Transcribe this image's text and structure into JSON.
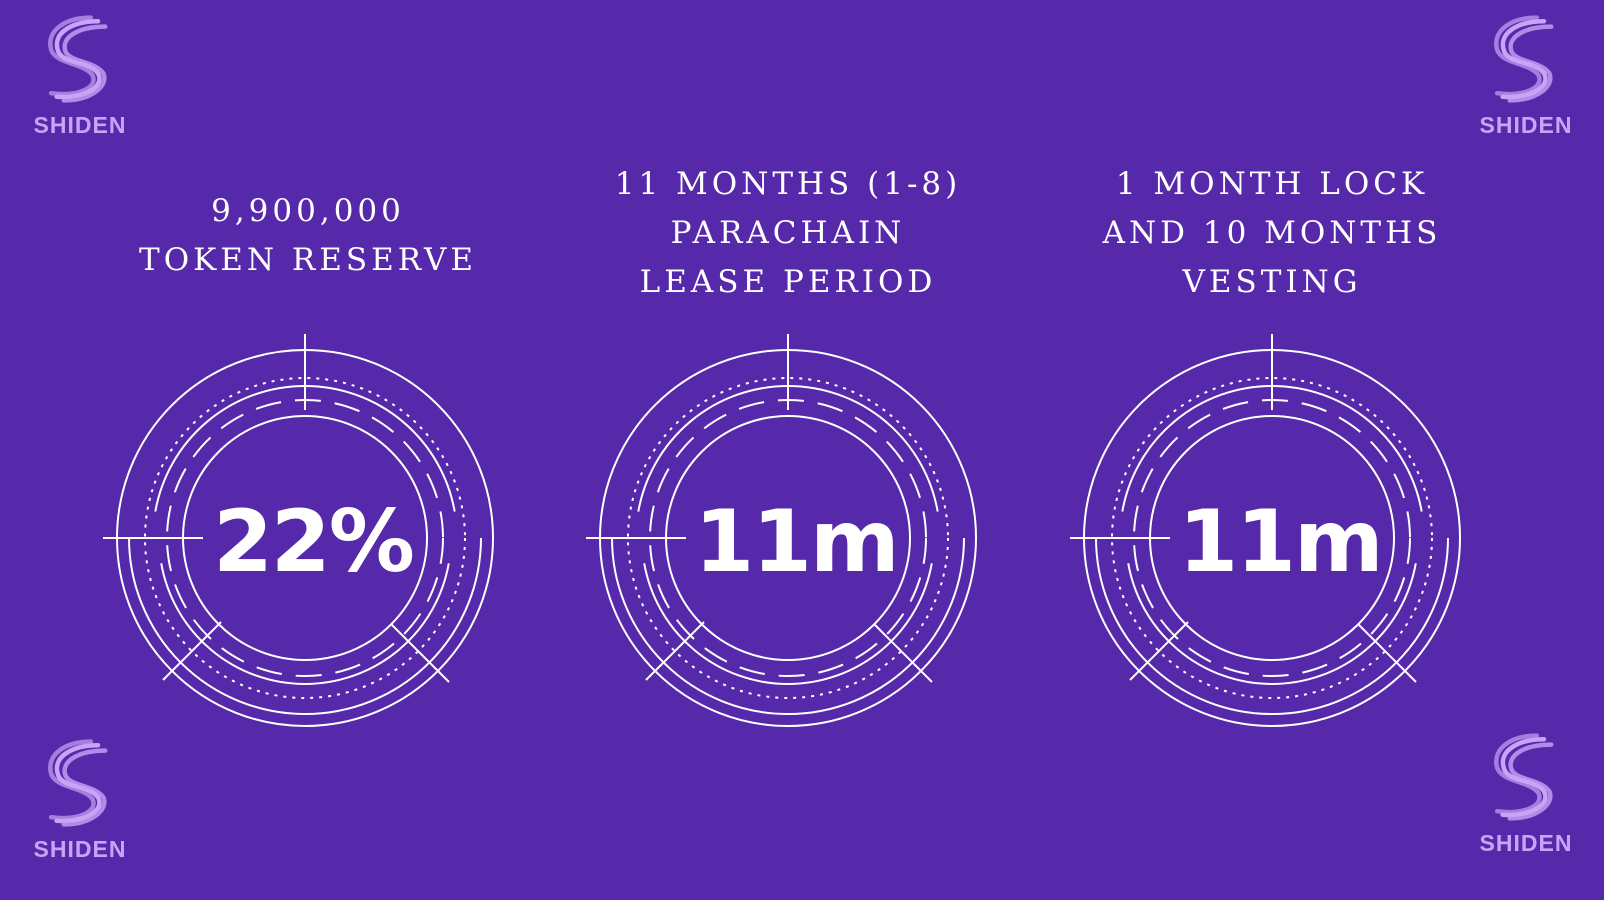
{
  "logos": {
    "brand_text": "SHIDEN",
    "icon": "shiden-s-icon",
    "color": "#c8a4f7"
  },
  "panels": [
    {
      "caption_lines": [
        "9,900,000",
        "TOKEN RESERVE"
      ],
      "value": "22%"
    },
    {
      "caption_lines": [
        "11 MONTHS (1-8)",
        "PARACHAIN",
        "LEASE PERIOD"
      ],
      "value": "11m"
    },
    {
      "caption_lines": [
        "1 MONTH LOCK",
        "AND 10 MONTHS",
        "VESTING"
      ],
      "value": "11m"
    }
  ],
  "colors": {
    "background": "#5629aa",
    "foreground": "#ffffff"
  }
}
